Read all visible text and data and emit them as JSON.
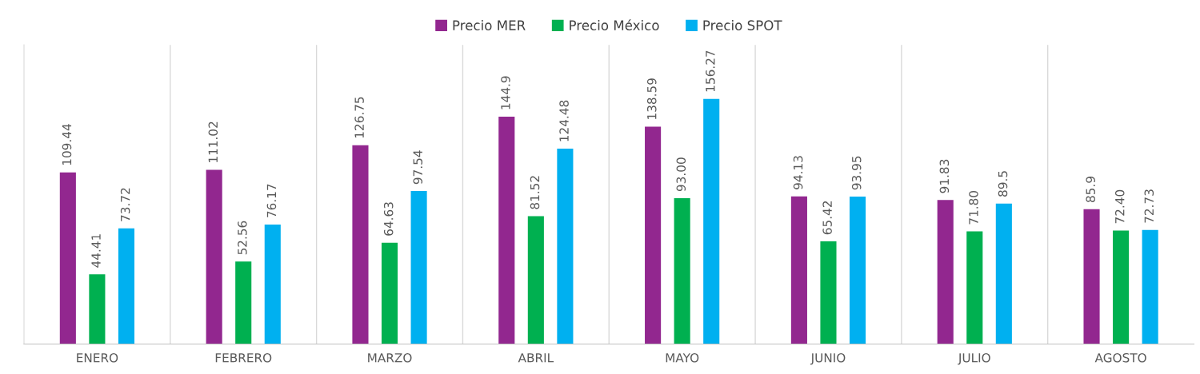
{
  "chart_data": {
    "type": "bar",
    "categories": [
      "ENERO",
      "FEBRERO",
      "MARZO",
      "ABRIL",
      "MAYO",
      "JUNIO",
      "JULIO",
      "AGOSTO"
    ],
    "series": [
      {
        "name": "Precio MER",
        "color": "#92278f",
        "values": [
          109.44,
          111.02,
          126.75,
          144.9,
          138.59,
          94.13,
          91.83,
          85.9
        ],
        "value_labels": [
          "109.44",
          "111.02",
          "126.75",
          "144.9",
          "138.59",
          "94.13",
          "91.83",
          "85.9"
        ]
      },
      {
        "name": "Precio México",
        "color": "#00b050",
        "values": [
          44.41,
          52.56,
          64.63,
          81.52,
          93.0,
          65.42,
          71.8,
          72.4
        ],
        "value_labels": [
          "44.41",
          "52.56",
          "64.63",
          "81.52",
          "93.00",
          "65.42",
          "71.80",
          "72.40"
        ]
      },
      {
        "name": "Precio SPOT",
        "color": "#00b0f0",
        "values": [
          73.72,
          76.17,
          97.54,
          124.48,
          156.27,
          93.95,
          89.5,
          72.73
        ],
        "value_labels": [
          "73.72",
          "76.17",
          "97.54",
          "124.48",
          "156.27",
          "93.95",
          "89.5",
          "72.73"
        ]
      }
    ],
    "grid": "x",
    "legend": "top"
  }
}
